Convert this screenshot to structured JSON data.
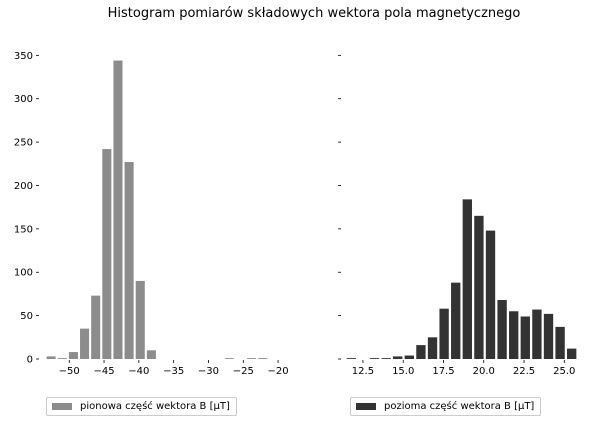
{
  "figure": {
    "title": "Histogram pomiarów składowych wektora pola magnetycznego"
  },
  "chart_data": [
    {
      "type": "bar",
      "name": "left-histogram",
      "series": [
        {
          "name": "pionowa część wektora B [µT]",
          "color": "#8c8c8c"
        }
      ],
      "x": [
        -52.6,
        -51.0,
        -49.4,
        -47.8,
        -46.2,
        -44.6,
        -43.0,
        -41.4,
        -39.8,
        -38.2,
        -36.6,
        -35.0,
        -33.4,
        -31.8,
        -30.2,
        -28.6,
        -27.0,
        -25.4,
        -23.8,
        -22.2
      ],
      "values": [
        3,
        1,
        8,
        35,
        73,
        242,
        344,
        227,
        90,
        10,
        0,
        0,
        0,
        0,
        0,
        0,
        1,
        0,
        1,
        1
      ],
      "bin_width": 1.6,
      "bar_width": 1.3,
      "xlim": [
        -54.2,
        -18.0
      ],
      "ylim": [
        0,
        370
      ],
      "xticks": [
        -50,
        -45,
        -40,
        -35,
        -30,
        -25,
        -20
      ],
      "xtick_labels": [
        "−50",
        "−45",
        "−40",
        "−35",
        "−30",
        "−25",
        "−20"
      ],
      "yticks": [
        0,
        50,
        100,
        150,
        200,
        250,
        300,
        350
      ],
      "ytick_labels": [
        "0",
        "50",
        "100",
        "150",
        "200",
        "250",
        "300",
        "350"
      ],
      "grid": false,
      "legend_position": "bottom-left"
    },
    {
      "type": "bar",
      "name": "right-histogram",
      "series": [
        {
          "name": "pozioma część wektora B [µT]",
          "color": "#333333"
        }
      ],
      "x": [
        11.78,
        12.5,
        13.22,
        13.94,
        14.66,
        15.38,
        16.1,
        16.82,
        17.54,
        18.26,
        18.98,
        19.7,
        20.42,
        21.14,
        21.86,
        22.58,
        23.3,
        24.02,
        24.74,
        25.46
      ],
      "values": [
        1,
        0,
        1,
        1,
        3,
        4,
        16,
        25,
        58,
        88,
        184,
        165,
        148,
        68,
        55,
        49,
        57,
        52,
        37,
        12
      ],
      "bin_width": 0.72,
      "bar_width": 0.58,
      "xlim": [
        11.2,
        26.1
      ],
      "ylim": [
        0,
        370
      ],
      "xticks": [
        12.5,
        15.0,
        17.5,
        20.0,
        22.5,
        25.0
      ],
      "xtick_labels": [
        "12.5",
        "15.0",
        "17.5",
        "20.0",
        "22.5",
        "25.0"
      ],
      "yticks": [
        0,
        50,
        100,
        150,
        200,
        250,
        300,
        350
      ],
      "grid": false,
      "legend_position": "bottom-left"
    }
  ]
}
